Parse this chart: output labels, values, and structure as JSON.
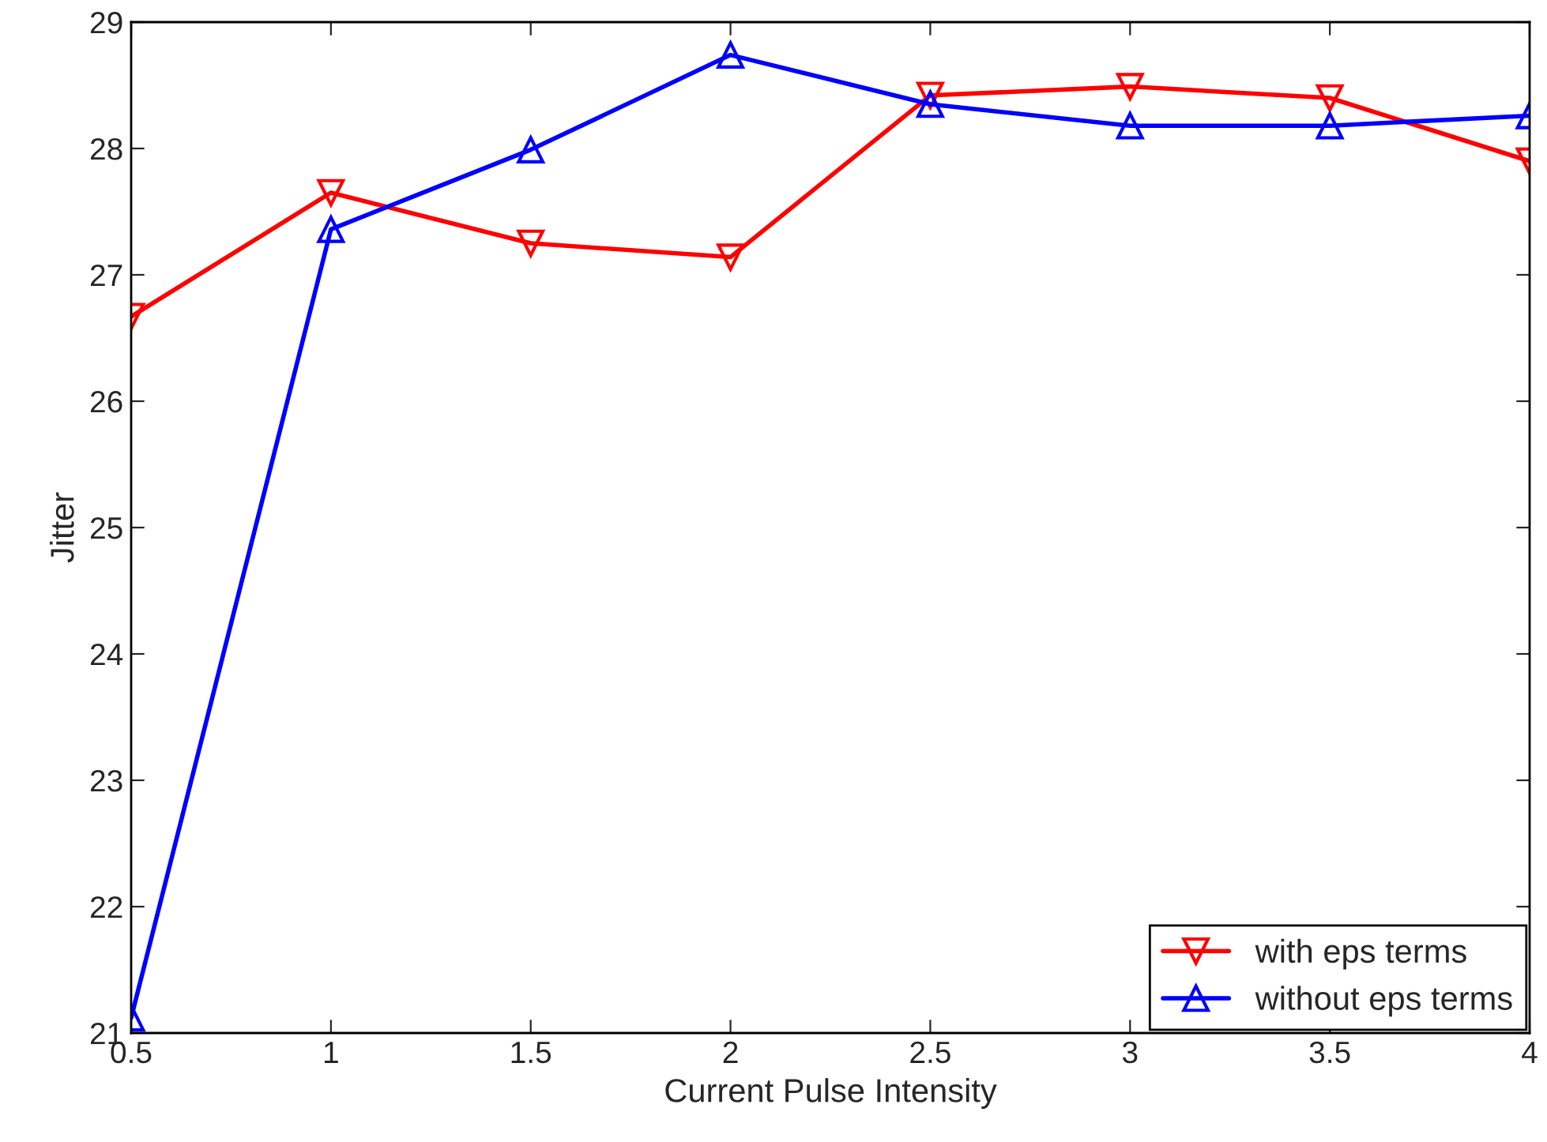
{
  "chart_data": {
    "type": "line",
    "xlabel": "Current Pulse Intensity",
    "ylabel": "Jitter",
    "x": [
      0.5,
      1,
      1.5,
      2,
      2.5,
      3,
      3.5,
      4
    ],
    "series": [
      {
        "name": "with eps terms",
        "color": "#ff0000",
        "marker": "triangle_down",
        "values": [
          26.67,
          27.65,
          27.25,
          27.14,
          28.42,
          28.49,
          28.4,
          27.9
        ]
      },
      {
        "name": "without eps terms",
        "color": "#0000ff",
        "marker": "triangle",
        "values": [
          21.12,
          27.36,
          27.99,
          28.74,
          28.35,
          28.18,
          28.18,
          28.26
        ]
      }
    ],
    "xlim": [
      0.5,
      4
    ],
    "ylim": [
      21,
      29
    ],
    "xticks": [
      0.5,
      1,
      1.5,
      2,
      2.5,
      3,
      3.5,
      4
    ],
    "yticks": [
      21,
      22,
      23,
      24,
      25,
      26,
      27,
      28,
      29
    ],
    "grid": false,
    "legend": "bottom right",
    "line_style": "solid"
  }
}
